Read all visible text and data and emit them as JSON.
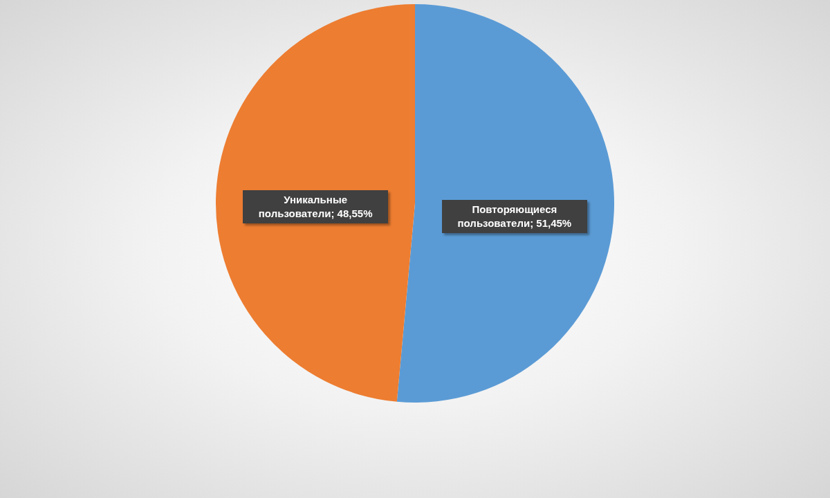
{
  "chart_data": {
    "type": "pie",
    "categories": [
      "Повторяющиеся пользователи",
      "Уникальные пользователи"
    ],
    "values": [
      51.45,
      48.55
    ],
    "colors": [
      "#5b9bd5",
      "#ed7d31"
    ],
    "value_labels": [
      "51,45%",
      "48,55%"
    ]
  }
}
